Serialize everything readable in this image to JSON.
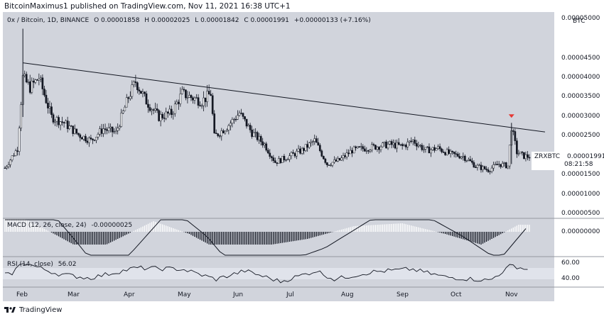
{
  "header": {
    "published_text": "BitcoinMaximus1 published on TradingView.com, Nov 11, 2021 16:38 UTC+1"
  },
  "legend": {
    "symbol": "0x / Bitcoin, 1D, BINANCE",
    "open": "O 0.00001858",
    "high": "H 0.00002025",
    "low": "L 0.00001842",
    "close": "C 0.00001991",
    "change": "+0.00000133 (+7.16%)"
  },
  "price_axis": {
    "currency": "BTC",
    "ticks": [
      "0.00005000",
      "0.00004500",
      "0.00004000",
      "0.00003500",
      "0.00003000",
      "0.00002500",
      "0.00001500",
      "0.00001000",
      "0.00000500"
    ]
  },
  "last_price": {
    "symbol": "ZRXBTC",
    "price": "0.00001991",
    "countdown": "08:21:58"
  },
  "macd": {
    "label": "MACD (12, 26, close, 24)",
    "value": "-0.00000025",
    "axis_tick": "0.00000000"
  },
  "rsi": {
    "label": "RSI (14, close)",
    "value": "56.02",
    "ticks": [
      "60.00",
      "40.00"
    ]
  },
  "x_axis": {
    "ticks": [
      "Feb",
      "Mar",
      "Apr",
      "May",
      "Jun",
      "Jul",
      "Aug",
      "Sep",
      "Oct",
      "Nov"
    ]
  },
  "footer": {
    "brand": "TradingView"
  },
  "colors": {
    "up": "#ffffff",
    "down": "#131722",
    "frame": "#d1d4dc",
    "marker": "#e53935",
    "trendline": "#131722"
  },
  "chart_data": {
    "type": "candlestick",
    "title": "0x / Bitcoin, 1D, BINANCE",
    "ylabel": "BTC",
    "ylim": [
      5e-07,
      5.5e-05
    ],
    "x_range": [
      "2021-01-22",
      "2021-11-11"
    ],
    "price_path": [
      {
        "date": "2021-01-22",
        "close": 1.7e-05
      },
      {
        "date": "2021-01-29",
        "close": 2.2e-05
      },
      {
        "date": "2021-02-01",
        "close": 4e-05
      },
      {
        "date": "2021-02-05",
        "close": 3.75e-05
      },
      {
        "date": "2021-02-10",
        "close": 4e-05
      },
      {
        "date": "2021-02-17",
        "close": 3e-05
      },
      {
        "date": "2021-02-24",
        "close": 2.85e-05
      },
      {
        "date": "2021-03-04",
        "close": 2.55e-05
      },
      {
        "date": "2021-03-11",
        "close": 2.4e-05
      },
      {
        "date": "2021-03-18",
        "close": 2.7e-05
      },
      {
        "date": "2021-03-25",
        "close": 2.6e-05
      },
      {
        "date": "2021-04-01",
        "close": 3.5e-05
      },
      {
        "date": "2021-04-05",
        "close": 3.9e-05
      },
      {
        "date": "2021-04-11",
        "close": 3.4e-05
      },
      {
        "date": "2021-04-18",
        "close": 3e-05
      },
      {
        "date": "2021-04-25",
        "close": 3.1e-05
      },
      {
        "date": "2021-05-01",
        "close": 3.6e-05
      },
      {
        "date": "2021-05-06",
        "close": 3.5e-05
      },
      {
        "date": "2021-05-12",
        "close": 3.4e-05
      },
      {
        "date": "2021-05-17",
        "close": 3.6e-05
      },
      {
        "date": "2021-05-19",
        "close": 2.5e-05
      },
      {
        "date": "2021-05-26",
        "close": 2.75e-05
      },
      {
        "date": "2021-06-02",
        "close": 3.1e-05
      },
      {
        "date": "2021-06-09",
        "close": 2.6e-05
      },
      {
        "date": "2021-06-16",
        "close": 2.3e-05
      },
      {
        "date": "2021-06-22",
        "close": 1.85e-05
      },
      {
        "date": "2021-06-30",
        "close": 2e-05
      },
      {
        "date": "2021-07-07",
        "close": 2.15e-05
      },
      {
        "date": "2021-07-14",
        "close": 2.4e-05
      },
      {
        "date": "2021-07-21",
        "close": 1.8e-05
      },
      {
        "date": "2021-07-28",
        "close": 1.9e-05
      },
      {
        "date": "2021-08-04",
        "close": 2.15e-05
      },
      {
        "date": "2021-08-11",
        "close": 2.2e-05
      },
      {
        "date": "2021-08-18",
        "close": 2.25e-05
      },
      {
        "date": "2021-08-25",
        "close": 2.3e-05
      },
      {
        "date": "2021-09-01",
        "close": 2.25e-05
      },
      {
        "date": "2021-09-07",
        "close": 2.4e-05
      },
      {
        "date": "2021-09-14",
        "close": 2.15e-05
      },
      {
        "date": "2021-09-21",
        "close": 2.2e-05
      },
      {
        "date": "2021-09-28",
        "close": 2.05e-05
      },
      {
        "date": "2021-10-05",
        "close": 2e-05
      },
      {
        "date": "2021-10-12",
        "close": 1.75e-05
      },
      {
        "date": "2021-10-19",
        "close": 1.65e-05
      },
      {
        "date": "2021-10-25",
        "close": 1.8e-05
      },
      {
        "date": "2021-10-30",
        "close": 1.75e-05
      },
      {
        "date": "2021-11-01",
        "close": 2.75e-05
      },
      {
        "date": "2021-11-04",
        "close": 2.1e-05
      },
      {
        "date": "2021-11-08",
        "close": 2e-05
      },
      {
        "date": "2021-11-11",
        "close": 1.99e-05
      }
    ],
    "trendline": [
      {
        "date": "2021-02-01",
        "price": 4.38e-05
      },
      {
        "date": "2021-11-11",
        "price": 2.67e-05
      }
    ],
    "marker": {
      "date": "2021-11-01",
      "type": "red-down-arrow"
    },
    "macd": {
      "histogram": [
        {
          "date": "2021-02-01",
          "value": 2e-06
        },
        {
          "date": "2021-02-20",
          "value": -5e-07
        },
        {
          "date": "2021-03-10",
          "value": -3e-06
        },
        {
          "date": "2021-03-30",
          "value": -5e-07
        },
        {
          "date": "2021-04-15",
          "value": 1.5e-06
        },
        {
          "date": "2021-05-05",
          "value": -3e-07
        },
        {
          "date": "2021-05-25",
          "value": -3e-06
        },
        {
          "date": "2021-06-15",
          "value": -2e-06
        },
        {
          "date": "2021-07-10",
          "value": -1e-06
        },
        {
          "date": "2021-08-05",
          "value": 8e-07
        },
        {
          "date": "2021-09-01",
          "value": 1.2e-06
        },
        {
          "date": "2021-09-25",
          "value": -3e-07
        },
        {
          "date": "2021-10-15",
          "value": -1.8e-06
        },
        {
          "date": "2021-11-05",
          "value": 1e-06
        }
      ]
    },
    "rsi": {
      "current": 56.02,
      "levels": [
        60,
        40
      ],
      "points": [
        {
          "date": "2021-01-25",
          "value": 48
        },
        {
          "date": "2021-02-01",
          "value": 70
        },
        {
          "date": "2021-02-20",
          "value": 50
        },
        {
          "date": "2021-03-10",
          "value": 42
        },
        {
          "date": "2021-04-05",
          "value": 60
        },
        {
          "date": "2021-05-01",
          "value": 58
        },
        {
          "date": "2021-05-20",
          "value": 40
        },
        {
          "date": "2021-06-05",
          "value": 55
        },
        {
          "date": "2021-06-25",
          "value": 36
        },
        {
          "date": "2021-07-15",
          "value": 55
        },
        {
          "date": "2021-07-25",
          "value": 40
        },
        {
          "date": "2021-08-15",
          "value": 53
        },
        {
          "date": "2021-09-06",
          "value": 58
        },
        {
          "date": "2021-09-25",
          "value": 44
        },
        {
          "date": "2021-10-20",
          "value": 38
        },
        {
          "date": "2021-11-01",
          "value": 65
        },
        {
          "date": "2021-11-11",
          "value": 56
        }
      ]
    }
  }
}
